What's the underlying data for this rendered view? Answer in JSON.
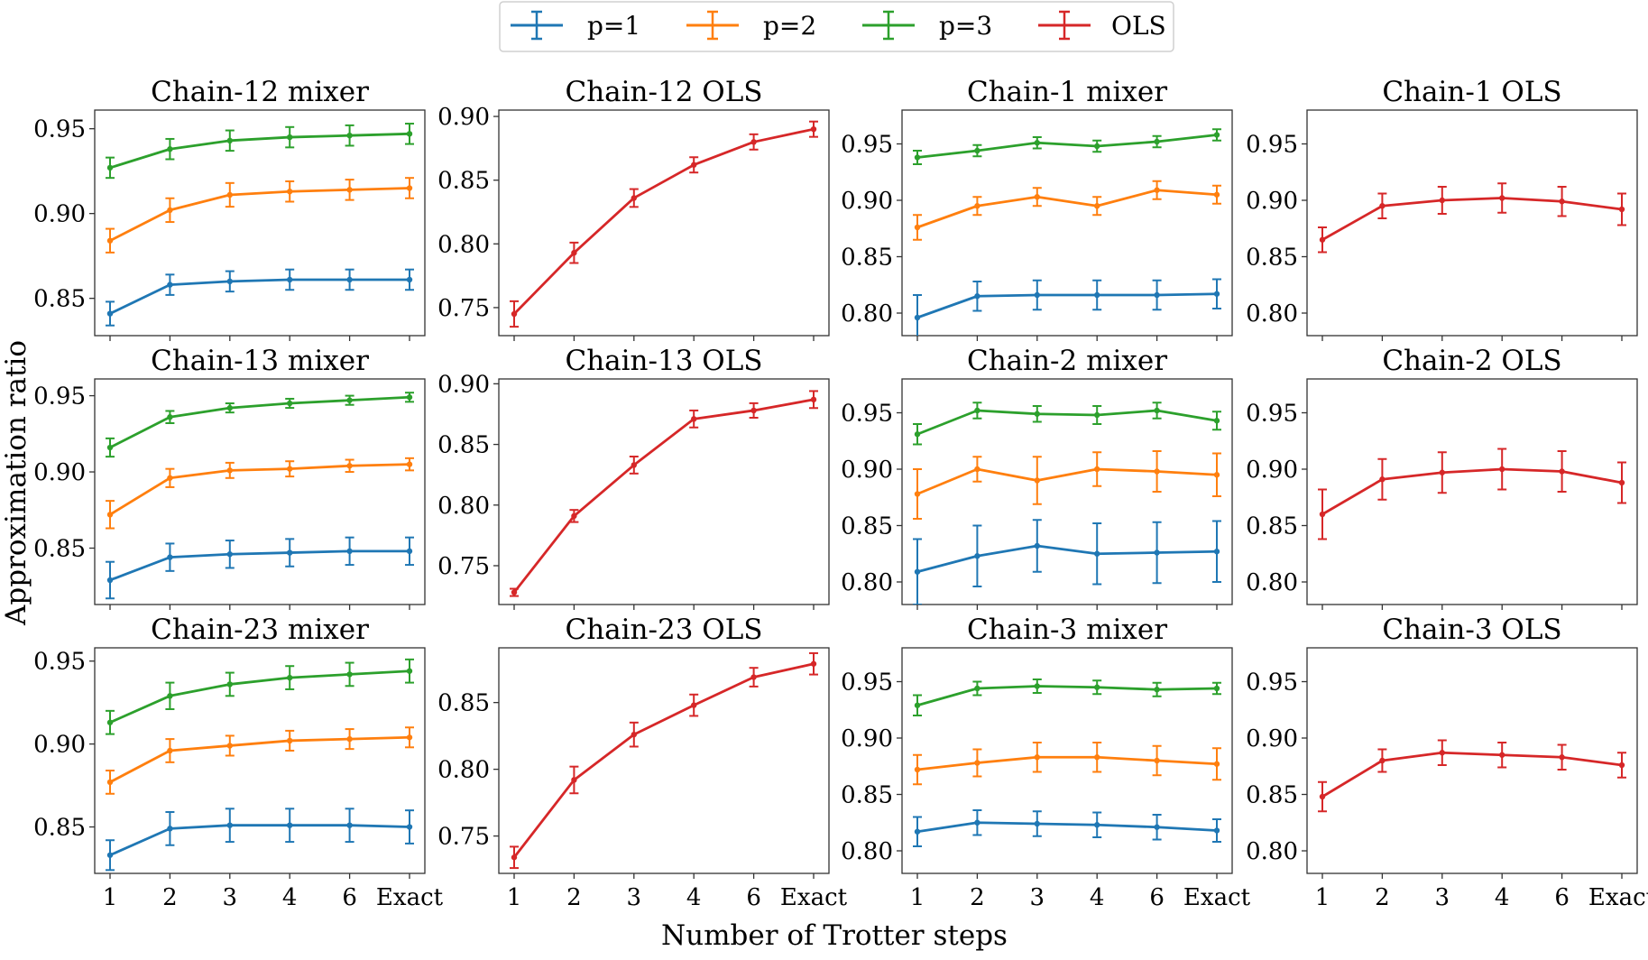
{
  "figure": {
    "ylabel": "Approximation ratio",
    "xlabel": "Number of Trotter steps",
    "colors": {
      "p=1": "#1f77b4",
      "p=2": "#ff7f0e",
      "p=3": "#2ca02c",
      "OLS": "#d62728"
    }
  },
  "legend": [
    {
      "label": "p=1",
      "color": "#1f77b4"
    },
    {
      "label": "p=2",
      "color": "#ff7f0e"
    },
    {
      "label": "p=3",
      "color": "#2ca02c"
    },
    {
      "label": "OLS",
      "color": "#d62728"
    }
  ],
  "chart_data": [
    {
      "type": "line",
      "title": "Chain-12 mixer",
      "categories": [
        "1",
        "2",
        "3",
        "4",
        "6",
        "Exact"
      ],
      "ylim": [
        0.828,
        0.961
      ],
      "yticks": [
        "0.85",
        "0.90",
        "0.95"
      ],
      "ytick_values": [
        0.85,
        0.9,
        0.95
      ],
      "series": [
        {
          "name": "p=1",
          "color": "#1f77b4",
          "values": [
            0.841,
            0.858,
            0.86,
            0.861,
            0.861,
            0.861
          ],
          "errors": [
            0.007,
            0.006,
            0.006,
            0.006,
            0.006,
            0.006
          ]
        },
        {
          "name": "p=2",
          "color": "#ff7f0e",
          "values": [
            0.884,
            0.902,
            0.911,
            0.913,
            0.914,
            0.915
          ],
          "errors": [
            0.007,
            0.007,
            0.007,
            0.006,
            0.006,
            0.006
          ]
        },
        {
          "name": "p=3",
          "color": "#2ca02c",
          "values": [
            0.927,
            0.938,
            0.943,
            0.945,
            0.946,
            0.947
          ],
          "errors": [
            0.006,
            0.006,
            0.006,
            0.006,
            0.006,
            0.006
          ]
        }
      ]
    },
    {
      "type": "line",
      "title": "Chain-12 OLS",
      "categories": [
        "1",
        "2",
        "3",
        "4",
        "6",
        "Exact"
      ],
      "ylim": [
        0.728,
        0.905
      ],
      "yticks": [
        "0.75",
        "0.80",
        "0.85",
        "0.90"
      ],
      "ytick_values": [
        0.75,
        0.8,
        0.85,
        0.9
      ],
      "series": [
        {
          "name": "OLS",
          "color": "#d62728",
          "values": [
            0.745,
            0.793,
            0.836,
            0.862,
            0.88,
            0.89
          ],
          "errors": [
            0.01,
            0.008,
            0.007,
            0.006,
            0.006,
            0.006
          ]
        }
      ]
    },
    {
      "type": "line",
      "title": "Chain-1 mixer",
      "categories": [
        "1",
        "2",
        "3",
        "4",
        "6",
        "Exact"
      ],
      "ylim": [
        0.78,
        0.98
      ],
      "yticks": [
        "0.80",
        "0.85",
        "0.90",
        "0.95"
      ],
      "ytick_values": [
        0.8,
        0.85,
        0.9,
        0.95
      ],
      "series": [
        {
          "name": "p=1",
          "color": "#1f77b4",
          "values": [
            0.796,
            0.815,
            0.816,
            0.816,
            0.816,
            0.817
          ],
          "errors": [
            0.02,
            0.013,
            0.013,
            0.013,
            0.013,
            0.013
          ]
        },
        {
          "name": "p=2",
          "color": "#ff7f0e",
          "values": [
            0.876,
            0.895,
            0.903,
            0.895,
            0.909,
            0.905
          ],
          "errors": [
            0.011,
            0.008,
            0.008,
            0.008,
            0.008,
            0.008
          ]
        },
        {
          "name": "p=3",
          "color": "#2ca02c",
          "values": [
            0.938,
            0.944,
            0.951,
            0.948,
            0.952,
            0.958
          ],
          "errors": [
            0.006,
            0.005,
            0.005,
            0.005,
            0.005,
            0.005
          ]
        }
      ]
    },
    {
      "type": "line",
      "title": "Chain-1 OLS",
      "categories": [
        "1",
        "2",
        "3",
        "4",
        "6",
        "Exact"
      ],
      "ylim": [
        0.78,
        0.98
      ],
      "yticks": [
        "0.80",
        "0.85",
        "0.90",
        "0.95"
      ],
      "ytick_values": [
        0.8,
        0.85,
        0.9,
        0.95
      ],
      "series": [
        {
          "name": "OLS",
          "color": "#d62728",
          "values": [
            0.865,
            0.895,
            0.9,
            0.902,
            0.899,
            0.892
          ],
          "errors": [
            0.011,
            0.011,
            0.012,
            0.013,
            0.013,
            0.014
          ]
        }
      ]
    },
    {
      "type": "line",
      "title": "Chain-13 mixer",
      "categories": [
        "1",
        "2",
        "3",
        "4",
        "6",
        "Exact"
      ],
      "ylim": [
        0.813,
        0.961
      ],
      "yticks": [
        "0.85",
        "0.90",
        "0.95"
      ],
      "ytick_values": [
        0.85,
        0.9,
        0.95
      ],
      "series": [
        {
          "name": "p=1",
          "color": "#1f77b4",
          "values": [
            0.829,
            0.844,
            0.846,
            0.847,
            0.848,
            0.848
          ],
          "errors": [
            0.012,
            0.009,
            0.009,
            0.009,
            0.009,
            0.009
          ]
        },
        {
          "name": "p=2",
          "color": "#ff7f0e",
          "values": [
            0.872,
            0.896,
            0.901,
            0.902,
            0.904,
            0.905
          ],
          "errors": [
            0.009,
            0.006,
            0.005,
            0.005,
            0.004,
            0.004
          ]
        },
        {
          "name": "p=3",
          "color": "#2ca02c",
          "values": [
            0.916,
            0.936,
            0.942,
            0.945,
            0.947,
            0.949
          ],
          "errors": [
            0.006,
            0.004,
            0.003,
            0.003,
            0.003,
            0.003
          ]
        }
      ]
    },
    {
      "type": "line",
      "title": "Chain-13 OLS",
      "categories": [
        "1",
        "2",
        "3",
        "4",
        "6",
        "Exact"
      ],
      "ylim": [
        0.718,
        0.904
      ],
      "yticks": [
        "0.75",
        "0.80",
        "0.85",
        "0.90"
      ],
      "ytick_values": [
        0.75,
        0.8,
        0.85,
        0.9
      ],
      "series": [
        {
          "name": "OLS",
          "color": "#d62728",
          "values": [
            0.728,
            0.791,
            0.833,
            0.871,
            0.878,
            0.887
          ],
          "errors": [
            0.003,
            0.005,
            0.007,
            0.007,
            0.006,
            0.007
          ]
        }
      ]
    },
    {
      "type": "line",
      "title": "Chain-2 mixer",
      "categories": [
        "1",
        "2",
        "3",
        "4",
        "6",
        "Exact"
      ],
      "ylim": [
        0.78,
        0.98
      ],
      "yticks": [
        "0.80",
        "0.85",
        "0.90",
        "0.95"
      ],
      "ytick_values": [
        0.8,
        0.85,
        0.9,
        0.95
      ],
      "series": [
        {
          "name": "p=1",
          "color": "#1f77b4",
          "values": [
            0.809,
            0.823,
            0.832,
            0.825,
            0.826,
            0.827
          ],
          "errors": [
            0.029,
            0.027,
            0.023,
            0.027,
            0.027,
            0.027
          ]
        },
        {
          "name": "p=2",
          "color": "#ff7f0e",
          "values": [
            0.878,
            0.9,
            0.89,
            0.9,
            0.898,
            0.895
          ],
          "errors": [
            0.022,
            0.011,
            0.021,
            0.015,
            0.018,
            0.019
          ]
        },
        {
          "name": "p=3",
          "color": "#2ca02c",
          "values": [
            0.931,
            0.952,
            0.949,
            0.948,
            0.952,
            0.943
          ],
          "errors": [
            0.009,
            0.007,
            0.007,
            0.008,
            0.007,
            0.008
          ]
        }
      ]
    },
    {
      "type": "line",
      "title": "Chain-2 OLS",
      "categories": [
        "1",
        "2",
        "3",
        "4",
        "6",
        "Exact"
      ],
      "ylim": [
        0.78,
        0.98
      ],
      "yticks": [
        "0.80",
        "0.85",
        "0.90",
        "0.95"
      ],
      "ytick_values": [
        0.8,
        0.85,
        0.9,
        0.95
      ],
      "series": [
        {
          "name": "OLS",
          "color": "#d62728",
          "values": [
            0.86,
            0.891,
            0.897,
            0.9,
            0.898,
            0.888
          ],
          "errors": [
            0.022,
            0.018,
            0.018,
            0.018,
            0.018,
            0.018
          ]
        }
      ]
    },
    {
      "type": "line",
      "title": "Chain-23 mixer",
      "categories": [
        "1",
        "2",
        "3",
        "4",
        "6",
        "Exact"
      ],
      "ylim": [
        0.822,
        0.958
      ],
      "yticks": [
        "0.85",
        "0.90",
        "0.95"
      ],
      "ytick_values": [
        0.85,
        0.9,
        0.95
      ],
      "series": [
        {
          "name": "p=1",
          "color": "#1f77b4",
          "values": [
            0.833,
            0.849,
            0.851,
            0.851,
            0.851,
            0.85
          ],
          "errors": [
            0.009,
            0.01,
            0.01,
            0.01,
            0.01,
            0.01
          ]
        },
        {
          "name": "p=2",
          "color": "#ff7f0e",
          "values": [
            0.877,
            0.896,
            0.899,
            0.902,
            0.903,
            0.904
          ],
          "errors": [
            0.007,
            0.007,
            0.006,
            0.006,
            0.006,
            0.006
          ]
        },
        {
          "name": "p=3",
          "color": "#2ca02c",
          "values": [
            0.913,
            0.929,
            0.936,
            0.94,
            0.942,
            0.944
          ],
          "errors": [
            0.007,
            0.008,
            0.007,
            0.007,
            0.007,
            0.007
          ]
        }
      ]
    },
    {
      "type": "line",
      "title": "Chain-23 OLS",
      "categories": [
        "1",
        "2",
        "3",
        "4",
        "6",
        "Exact"
      ],
      "ylim": [
        0.722,
        0.891
      ],
      "yticks": [
        "0.75",
        "0.80",
        "0.85"
      ],
      "ytick_values": [
        0.75,
        0.8,
        0.85
      ],
      "series": [
        {
          "name": "OLS",
          "color": "#d62728",
          "values": [
            0.734,
            0.792,
            0.826,
            0.848,
            0.869,
            0.879
          ],
          "errors": [
            0.008,
            0.01,
            0.009,
            0.008,
            0.007,
            0.008
          ]
        }
      ]
    },
    {
      "type": "line",
      "title": "Chain-3 mixer",
      "categories": [
        "1",
        "2",
        "3",
        "4",
        "6",
        "Exact"
      ],
      "ylim": [
        0.78,
        0.98
      ],
      "yticks": [
        "0.80",
        "0.85",
        "0.90",
        "0.95"
      ],
      "ytick_values": [
        0.8,
        0.85,
        0.9,
        0.95
      ],
      "series": [
        {
          "name": "p=1",
          "color": "#1f77b4",
          "values": [
            0.817,
            0.825,
            0.824,
            0.823,
            0.821,
            0.818
          ],
          "errors": [
            0.013,
            0.011,
            0.011,
            0.011,
            0.011,
            0.01
          ]
        },
        {
          "name": "p=2",
          "color": "#ff7f0e",
          "values": [
            0.872,
            0.878,
            0.883,
            0.883,
            0.88,
            0.877
          ],
          "errors": [
            0.013,
            0.012,
            0.013,
            0.013,
            0.013,
            0.014
          ]
        },
        {
          "name": "p=3",
          "color": "#2ca02c",
          "values": [
            0.929,
            0.944,
            0.946,
            0.945,
            0.943,
            0.944
          ],
          "errors": [
            0.009,
            0.006,
            0.006,
            0.006,
            0.006,
            0.005
          ]
        }
      ]
    },
    {
      "type": "line",
      "title": "Chain-3 OLS",
      "categories": [
        "1",
        "2",
        "3",
        "4",
        "6",
        "Exact"
      ],
      "ylim": [
        0.78,
        0.98
      ],
      "yticks": [
        "0.80",
        "0.85",
        "0.90",
        "0.95"
      ],
      "ytick_values": [
        0.8,
        0.85,
        0.9,
        0.95
      ],
      "series": [
        {
          "name": "OLS",
          "color": "#d62728",
          "values": [
            0.848,
            0.88,
            0.887,
            0.885,
            0.883,
            0.876
          ],
          "errors": [
            0.013,
            0.01,
            0.011,
            0.011,
            0.011,
            0.011
          ]
        }
      ]
    }
  ]
}
